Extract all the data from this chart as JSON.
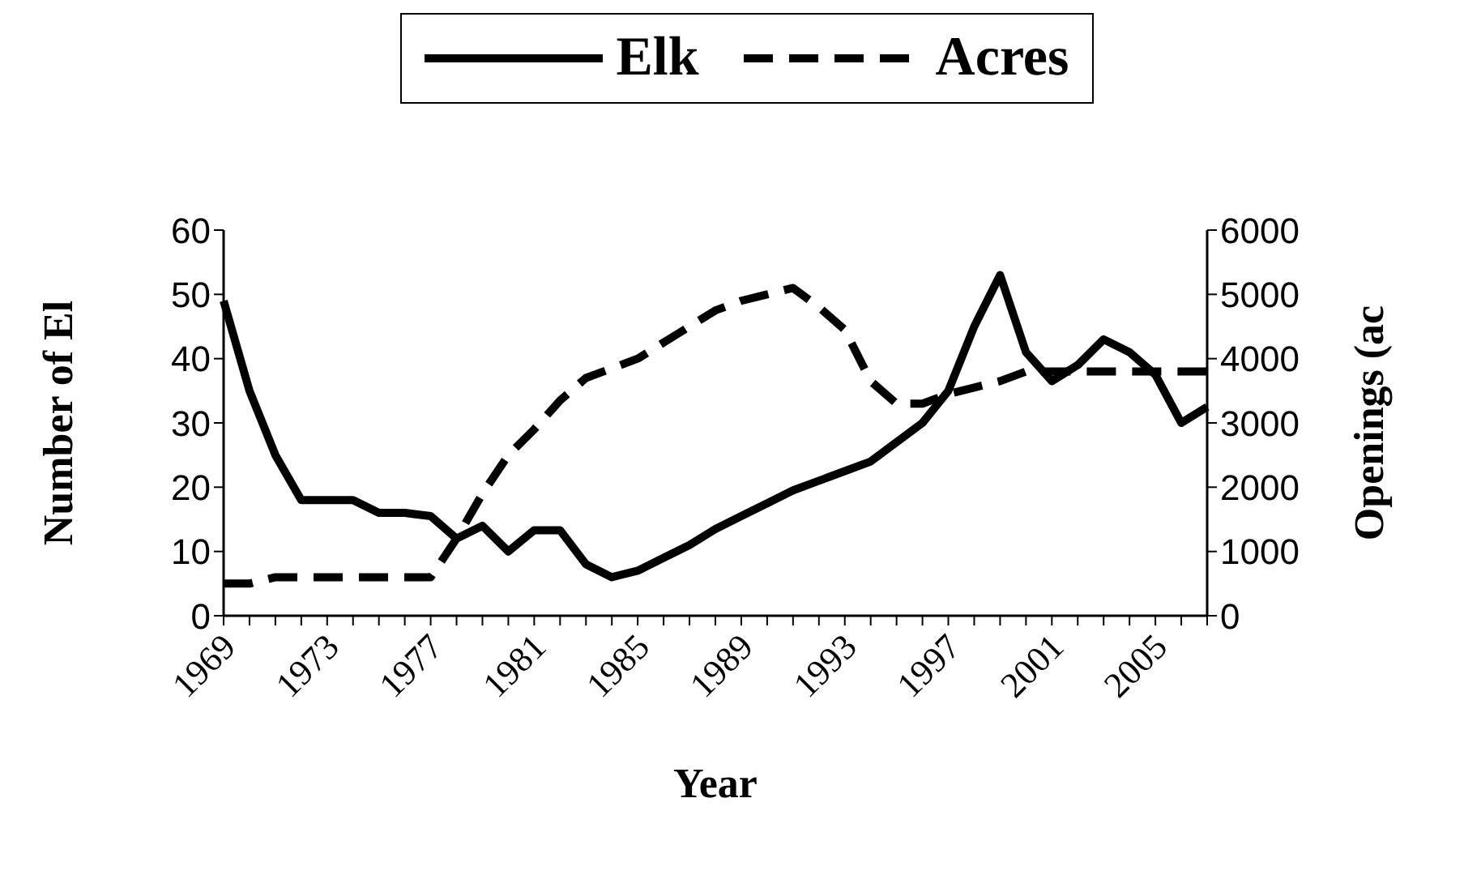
{
  "chart_data": {
    "type": "line",
    "xlabel": "Year",
    "ylabel": "Number of El",
    "y2label": "Openings (ac",
    "categories": [
      "1969",
      null,
      null,
      null,
      "1973",
      null,
      null,
      null,
      "1977",
      null,
      null,
      null,
      "1981",
      null,
      null,
      null,
      "1985",
      null,
      null,
      null,
      "1989",
      null,
      null,
      null,
      "1993",
      null,
      null,
      null,
      "1997",
      null,
      null,
      null,
      "2001",
      null,
      null,
      null,
      "2005",
      null,
      null
    ],
    "series": [
      {
        "name": "Elk",
        "color": "#000000",
        "line_style": "solid",
        "values": [
          49,
          35,
          25,
          18,
          18,
          18,
          16,
          16,
          15.5,
          12,
          14,
          10,
          13.3,
          13.3,
          8,
          6,
          7,
          9,
          11,
          13.5,
          15.5,
          17.5,
          19.5,
          21,
          22.5,
          24,
          27,
          30,
          35,
          45,
          53,
          41,
          36.5,
          39,
          43,
          41,
          37.5,
          30,
          32.5
        ]
      },
      {
        "name": "Acres",
        "color": "#000000",
        "line_style": "dashed",
        "axis": "y2",
        "values": [
          500,
          500,
          600,
          600,
          600,
          600,
          600,
          600,
          600,
          1200,
          1900,
          2500,
          2900,
          3350,
          3700,
          3850,
          4000,
          4250,
          4500,
          4750,
          4900,
          5000,
          5100,
          4800,
          4450,
          3650,
          3300,
          3300,
          3450,
          3550,
          3650,
          3800,
          3800,
          3800,
          3800,
          3800,
          3800,
          3800,
          3800
        ]
      }
    ],
    "ylim": [
      0,
      60
    ],
    "yticks": [
      0,
      10,
      20,
      30,
      40,
      50,
      60
    ],
    "y2lim": [
      0,
      6000
    ],
    "y2ticks": [
      0,
      1000,
      2000,
      3000,
      4000,
      5000,
      6000
    ],
    "marker": "none",
    "legend": "top"
  }
}
